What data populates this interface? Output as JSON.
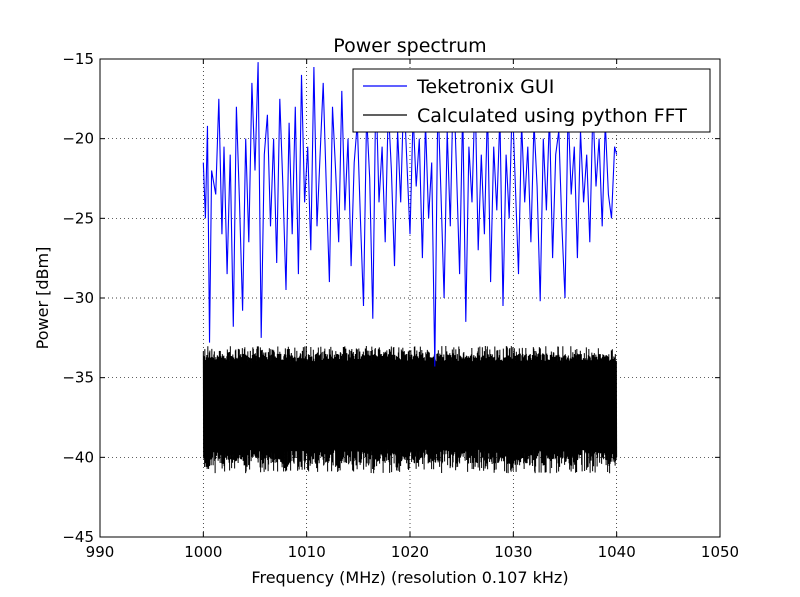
{
  "chart_data": {
    "type": "line",
    "title": "Power spectrum",
    "xlabel": "Frequency (MHz) (resolution 0.107 kHz)",
    "ylabel": "Power  [dBm]",
    "xlim": [
      990,
      1050
    ],
    "ylim": [
      -45,
      -15
    ],
    "xticks": [
      990,
      1000,
      1010,
      1020,
      1030,
      1040,
      1050
    ],
    "yticks": [
      -15,
      -20,
      -25,
      -30,
      -35,
      -40,
      -45
    ],
    "xtick_labels": [
      "990",
      "1000",
      "1010",
      "1020",
      "1030",
      "1040",
      "1050"
    ],
    "ytick_labels": [
      "−15",
      "−20",
      "−25",
      "−30",
      "−35",
      "−40",
      "−45"
    ],
    "grid": true,
    "legend_position": "top-right",
    "series": [
      {
        "name": "Teketronix GUI",
        "color": "#0000ff",
        "x_range": [
          1000,
          1040
        ],
        "description": "noisy blue trace",
        "y_upper_envelope": -15.2,
        "y_lower_envelope": -34.3,
        "y_typical_range": [
          -27,
          -17
        ],
        "points": [
          [
            1000.0,
            -21.5
          ],
          [
            1000.2,
            -25.0
          ],
          [
            1000.4,
            -19.2
          ],
          [
            1000.6,
            -32.8
          ],
          [
            1000.8,
            -22.0
          ],
          [
            1001.2,
            -23.5
          ],
          [
            1001.5,
            -17.5
          ],
          [
            1001.8,
            -26.0
          ],
          [
            1002.0,
            -20.5
          ],
          [
            1002.3,
            -28.5
          ],
          [
            1002.6,
            -21.0
          ],
          [
            1002.9,
            -31.8
          ],
          [
            1003.2,
            -18.0
          ],
          [
            1003.5,
            -24.0
          ],
          [
            1003.8,
            -30.8
          ],
          [
            1004.1,
            -20.0
          ],
          [
            1004.4,
            -26.5
          ],
          [
            1004.7,
            -16.5
          ],
          [
            1005.0,
            -22.0
          ],
          [
            1005.3,
            -15.2
          ],
          [
            1005.6,
            -32.5
          ],
          [
            1005.9,
            -21.0
          ],
          [
            1006.2,
            -18.5
          ],
          [
            1006.5,
            -25.5
          ],
          [
            1006.8,
            -20.0
          ],
          [
            1007.1,
            -27.8
          ],
          [
            1007.4,
            -17.5
          ],
          [
            1007.7,
            -23.0
          ],
          [
            1008.0,
            -29.5
          ],
          [
            1008.3,
            -19.0
          ],
          [
            1008.6,
            -26.0
          ],
          [
            1008.9,
            -18.0
          ],
          [
            1009.2,
            -28.5
          ],
          [
            1009.5,
            -16.0
          ],
          [
            1009.8,
            -24.0
          ],
          [
            1010.1,
            -20.5
          ],
          [
            1010.4,
            -27.0
          ],
          [
            1010.7,
            -15.5
          ],
          [
            1011.0,
            -25.5
          ],
          [
            1011.3,
            -21.0
          ],
          [
            1011.6,
            -16.5
          ],
          [
            1011.9,
            -23.0
          ],
          [
            1012.2,
            -29.0
          ],
          [
            1012.5,
            -18.0
          ],
          [
            1012.8,
            -22.0
          ],
          [
            1013.1,
            -26.5
          ],
          [
            1013.4,
            -17.0
          ],
          [
            1013.7,
            -24.5
          ],
          [
            1014.0,
            -20.0
          ],
          [
            1014.3,
            -28.0
          ],
          [
            1014.6,
            -21.5
          ],
          [
            1014.9,
            -19.0
          ],
          [
            1015.2,
            -25.0
          ],
          [
            1015.5,
            -30.5
          ],
          [
            1015.8,
            -18.5
          ],
          [
            1016.1,
            -22.5
          ],
          [
            1016.4,
            -31.3
          ],
          [
            1016.7,
            -16.5
          ],
          [
            1017.0,
            -24.0
          ],
          [
            1017.3,
            -20.5
          ],
          [
            1017.6,
            -26.5
          ],
          [
            1017.9,
            -18.0
          ],
          [
            1018.2,
            -22.0
          ],
          [
            1018.5,
            -28.0
          ],
          [
            1018.8,
            -19.5
          ],
          [
            1019.1,
            -24.0
          ],
          [
            1019.4,
            -17.0
          ],
          [
            1019.7,
            -21.5
          ],
          [
            1020.0,
            -26.0
          ],
          [
            1020.3,
            -18.5
          ],
          [
            1020.6,
            -23.0
          ],
          [
            1020.9,
            -20.0
          ],
          [
            1021.2,
            -27.5
          ],
          [
            1021.5,
            -19.0
          ],
          [
            1021.8,
            -25.0
          ],
          [
            1022.1,
            -21.5
          ],
          [
            1022.4,
            -34.3
          ],
          [
            1022.7,
            -17.5
          ],
          [
            1023.0,
            -23.5
          ],
          [
            1023.3,
            -30.0
          ],
          [
            1023.6,
            -19.5
          ],
          [
            1023.9,
            -25.5
          ],
          [
            1024.2,
            -16.0
          ],
          [
            1024.5,
            -22.0
          ],
          [
            1024.8,
            -28.5
          ],
          [
            1025.1,
            -18.0
          ],
          [
            1025.4,
            -31.5
          ],
          [
            1025.7,
            -20.5
          ],
          [
            1026.0,
            -24.0
          ],
          [
            1026.3,
            -17.0
          ],
          [
            1026.6,
            -27.0
          ],
          [
            1026.9,
            -21.0
          ],
          [
            1027.2,
            -26.0
          ],
          [
            1027.5,
            -18.0
          ],
          [
            1027.8,
            -29.0
          ],
          [
            1028.1,
            -20.5
          ],
          [
            1028.4,
            -24.5
          ],
          [
            1028.7,
            -18.5
          ],
          [
            1029.0,
            -30.5
          ],
          [
            1029.3,
            -21.0
          ],
          [
            1029.6,
            -25.0
          ],
          [
            1029.9,
            -17.5
          ],
          [
            1030.2,
            -23.0
          ],
          [
            1030.5,
            -28.5
          ],
          [
            1030.8,
            -19.0
          ],
          [
            1031.1,
            -24.0
          ],
          [
            1031.4,
            -20.5
          ],
          [
            1031.7,
            -26.5
          ],
          [
            1032.0,
            -19.0
          ],
          [
            1032.3,
            -23.0
          ],
          [
            1032.6,
            -30.2
          ],
          [
            1032.9,
            -20.0
          ],
          [
            1033.2,
            -24.5
          ],
          [
            1033.5,
            -18.5
          ],
          [
            1033.8,
            -27.5
          ],
          [
            1034.1,
            -21.0
          ],
          [
            1034.4,
            -19.5
          ],
          [
            1034.7,
            -25.5
          ],
          [
            1035.0,
            -30.0
          ],
          [
            1035.3,
            -18.0
          ],
          [
            1035.6,
            -23.5
          ],
          [
            1035.9,
            -20.5
          ],
          [
            1036.2,
            -27.5
          ],
          [
            1036.5,
            -19.5
          ],
          [
            1036.8,
            -24.0
          ],
          [
            1037.1,
            -21.0
          ],
          [
            1037.4,
            -26.5
          ],
          [
            1037.7,
            -18.0
          ],
          [
            1038.0,
            -23.0
          ],
          [
            1038.3,
            -20.0
          ],
          [
            1038.6,
            -25.5
          ],
          [
            1038.9,
            -19.0
          ],
          [
            1039.2,
            -23.5
          ],
          [
            1039.5,
            -25.0
          ],
          [
            1039.8,
            -20.5
          ],
          [
            1040.0,
            -21.0
          ]
        ]
      },
      {
        "name": "Calculated using python FFT",
        "color": "#000000",
        "x_range": [
          1000,
          1040
        ],
        "description": "dense noise band",
        "band_upper": -33.0,
        "band_lower": -41.0,
        "band_core_range": [
          -39.5,
          -34.0
        ]
      }
    ]
  }
}
